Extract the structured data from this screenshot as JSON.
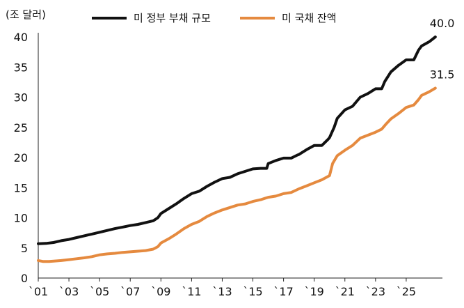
{
  "chart_data": {
    "type": "line",
    "title": "",
    "ylabel": "(조 달러)",
    "xlabel": "",
    "ylim": [
      0,
      40
    ],
    "xlim": [
      2001,
      2027
    ],
    "y_ticks": [
      0,
      5,
      10,
      15,
      20,
      25,
      30,
      35,
      40
    ],
    "x_ticks": [
      {
        "label": "`01",
        "value": 2001
      },
      {
        "label": "`03",
        "value": 2003
      },
      {
        "label": "`05",
        "value": 2005
      },
      {
        "label": "`07",
        "value": 2007
      },
      {
        "label": "`09",
        "value": 2009
      },
      {
        "label": "`11",
        "value": 2011
      },
      {
        "label": "`13",
        "value": 2013
      },
      {
        "label": "`15",
        "value": 2015
      },
      {
        "label": "`17",
        "value": 2017
      },
      {
        "label": "`19",
        "value": 2019
      },
      {
        "label": "`21",
        "value": 2021
      },
      {
        "label": "`23",
        "value": 2023
      },
      {
        "label": "`25",
        "value": 2025
      }
    ],
    "legend_position": "top",
    "grid": false,
    "series": [
      {
        "name": "미 정부 부채 규모",
        "color": "#111111",
        "end_label": "40.0",
        "points": [
          [
            2001.0,
            5.7
          ],
          [
            2001.5,
            5.75
          ],
          [
            2002.0,
            5.9
          ],
          [
            2002.5,
            6.2
          ],
          [
            2003.0,
            6.4
          ],
          [
            2003.5,
            6.7
          ],
          [
            2004.0,
            7.0
          ],
          [
            2004.5,
            7.3
          ],
          [
            2005.0,
            7.6
          ],
          [
            2005.5,
            7.9
          ],
          [
            2006.0,
            8.2
          ],
          [
            2006.5,
            8.45
          ],
          [
            2007.0,
            8.7
          ],
          [
            2007.5,
            8.9
          ],
          [
            2008.0,
            9.2
          ],
          [
            2008.5,
            9.5
          ],
          [
            2008.8,
            10.0
          ],
          [
            2009.0,
            10.7
          ],
          [
            2009.5,
            11.5
          ],
          [
            2010.0,
            12.3
          ],
          [
            2010.5,
            13.2
          ],
          [
            2011.0,
            14.0
          ],
          [
            2011.5,
            14.4
          ],
          [
            2012.0,
            15.2
          ],
          [
            2012.5,
            15.9
          ],
          [
            2013.0,
            16.5
          ],
          [
            2013.5,
            16.7
          ],
          [
            2014.0,
            17.3
          ],
          [
            2014.5,
            17.7
          ],
          [
            2015.0,
            18.1
          ],
          [
            2015.5,
            18.2
          ],
          [
            2015.9,
            18.2
          ],
          [
            2016.0,
            19.0
          ],
          [
            2016.5,
            19.5
          ],
          [
            2017.0,
            19.9
          ],
          [
            2017.5,
            19.9
          ],
          [
            2017.9,
            20.4
          ],
          [
            2018.0,
            20.5
          ],
          [
            2018.5,
            21.3
          ],
          [
            2019.0,
            22.0
          ],
          [
            2019.5,
            22.0
          ],
          [
            2019.9,
            23.0
          ],
          [
            2020.0,
            23.3
          ],
          [
            2020.3,
            25.0
          ],
          [
            2020.5,
            26.5
          ],
          [
            2021.0,
            27.9
          ],
          [
            2021.5,
            28.5
          ],
          [
            2022.0,
            30.0
          ],
          [
            2022.5,
            30.6
          ],
          [
            2023.0,
            31.4
          ],
          [
            2023.4,
            31.4
          ],
          [
            2023.6,
            32.6
          ],
          [
            2024.0,
            34.2
          ],
          [
            2024.5,
            35.3
          ],
          [
            2025.0,
            36.2
          ],
          [
            2025.5,
            36.2
          ],
          [
            2025.8,
            37.8
          ],
          [
            2026.0,
            38.5
          ],
          [
            2026.5,
            39.2
          ],
          [
            2026.9,
            40.0
          ]
        ]
      },
      {
        "name": "미 국채 잔액",
        "color": "#E58A3F",
        "end_label": "31.5",
        "points": [
          [
            2001.0,
            2.9
          ],
          [
            2001.3,
            2.75
          ],
          [
            2001.7,
            2.75
          ],
          [
            2002.0,
            2.8
          ],
          [
            2002.5,
            2.9
          ],
          [
            2003.0,
            3.05
          ],
          [
            2003.5,
            3.2
          ],
          [
            2004.0,
            3.35
          ],
          [
            2004.5,
            3.55
          ],
          [
            2005.0,
            3.85
          ],
          [
            2005.5,
            4.0
          ],
          [
            2006.0,
            4.1
          ],
          [
            2006.5,
            4.25
          ],
          [
            2007.0,
            4.35
          ],
          [
            2007.5,
            4.45
          ],
          [
            2008.0,
            4.55
          ],
          [
            2008.5,
            4.8
          ],
          [
            2008.8,
            5.2
          ],
          [
            2009.0,
            5.8
          ],
          [
            2009.5,
            6.5
          ],
          [
            2010.0,
            7.3
          ],
          [
            2010.5,
            8.2
          ],
          [
            2011.0,
            8.9
          ],
          [
            2011.5,
            9.4
          ],
          [
            2012.0,
            10.2
          ],
          [
            2012.5,
            10.8
          ],
          [
            2013.0,
            11.3
          ],
          [
            2013.5,
            11.7
          ],
          [
            2014.0,
            12.1
          ],
          [
            2014.5,
            12.3
          ],
          [
            2015.0,
            12.7
          ],
          [
            2015.5,
            13.0
          ],
          [
            2016.0,
            13.4
          ],
          [
            2016.5,
            13.6
          ],
          [
            2017.0,
            14.0
          ],
          [
            2017.5,
            14.2
          ],
          [
            2018.0,
            14.8
          ],
          [
            2018.5,
            15.3
          ],
          [
            2019.0,
            15.8
          ],
          [
            2019.5,
            16.3
          ],
          [
            2020.0,
            17.0
          ],
          [
            2020.2,
            19.0
          ],
          [
            2020.5,
            20.3
          ],
          [
            2021.0,
            21.2
          ],
          [
            2021.5,
            22.0
          ],
          [
            2022.0,
            23.2
          ],
          [
            2022.5,
            23.7
          ],
          [
            2023.0,
            24.2
          ],
          [
            2023.4,
            24.7
          ],
          [
            2023.7,
            25.6
          ],
          [
            2024.0,
            26.4
          ],
          [
            2024.5,
            27.3
          ],
          [
            2025.0,
            28.3
          ],
          [
            2025.5,
            28.7
          ],
          [
            2025.8,
            29.6
          ],
          [
            2026.0,
            30.3
          ],
          [
            2026.5,
            30.9
          ],
          [
            2026.9,
            31.5
          ]
        ]
      }
    ]
  }
}
